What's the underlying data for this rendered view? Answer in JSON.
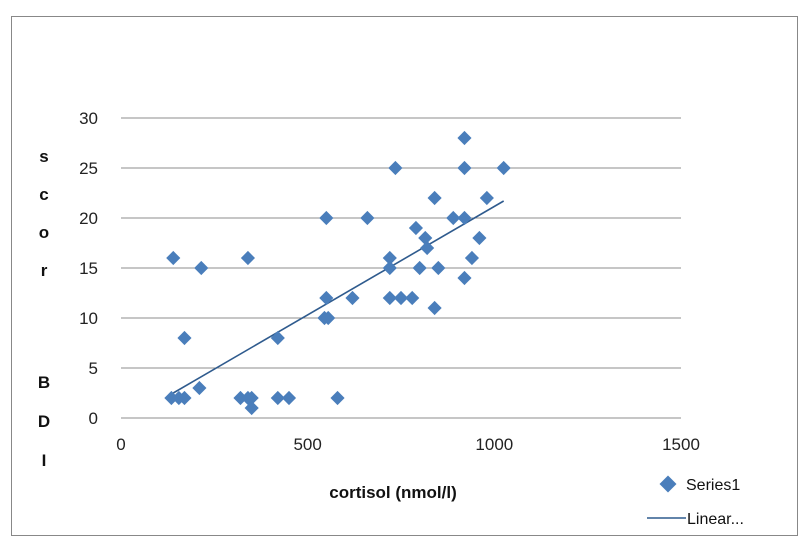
{
  "chart_data": {
    "type": "scatter",
    "title": "",
    "xlabel": "cortisol (nmol/l)",
    "ylabel_letters": [
      "s",
      "c",
      "o",
      "r",
      "",
      "B",
      "D",
      "I"
    ],
    "xlim": [
      0,
      1500
    ],
    "ylim": [
      0,
      30
    ],
    "x_ticks": [
      "0",
      "500",
      "1000",
      "1500"
    ],
    "y_ticks": [
      "0",
      "5",
      "10",
      "15",
      "20",
      "25",
      "30"
    ],
    "grid": "horizontal",
    "legend_position": "bottom-right",
    "marker_color": "#4a7ebb",
    "line_color": "#2f5b8e",
    "series": [
      {
        "name": "Series1",
        "points": [
          [
            135,
            2
          ],
          [
            155,
            2
          ],
          [
            170,
            2
          ],
          [
            210,
            3
          ],
          [
            140,
            16
          ],
          [
            170,
            8
          ],
          [
            215,
            15
          ],
          [
            320,
            2
          ],
          [
            340,
            2
          ],
          [
            350,
            2
          ],
          [
            350,
            1
          ],
          [
            420,
            2
          ],
          [
            450,
            2
          ],
          [
            340,
            16
          ],
          [
            420,
            8
          ],
          [
            550,
            20
          ],
          [
            545,
            10
          ],
          [
            555,
            10
          ],
          [
            550,
            12
          ],
          [
            580,
            2
          ],
          [
            620,
            12
          ],
          [
            660,
            20
          ],
          [
            735,
            25
          ],
          [
            720,
            16
          ],
          [
            720,
            15
          ],
          [
            720,
            12
          ],
          [
            750,
            12
          ],
          [
            780,
            12
          ],
          [
            790,
            19
          ],
          [
            800,
            15
          ],
          [
            815,
            18
          ],
          [
            820,
            17
          ],
          [
            840,
            11
          ],
          [
            850,
            15
          ],
          [
            840,
            22
          ],
          [
            890,
            20
          ],
          [
            920,
            28
          ],
          [
            920,
            25
          ],
          [
            920,
            20
          ],
          [
            920,
            14
          ],
          [
            940,
            16
          ],
          [
            960,
            18
          ],
          [
            980,
            22
          ],
          [
            1025,
            25
          ]
        ]
      },
      {
        "name": "Linear...",
        "type": "line",
        "x": [
          140,
          1025
        ],
        "y": [
          2.5,
          21.7
        ]
      }
    ]
  }
}
